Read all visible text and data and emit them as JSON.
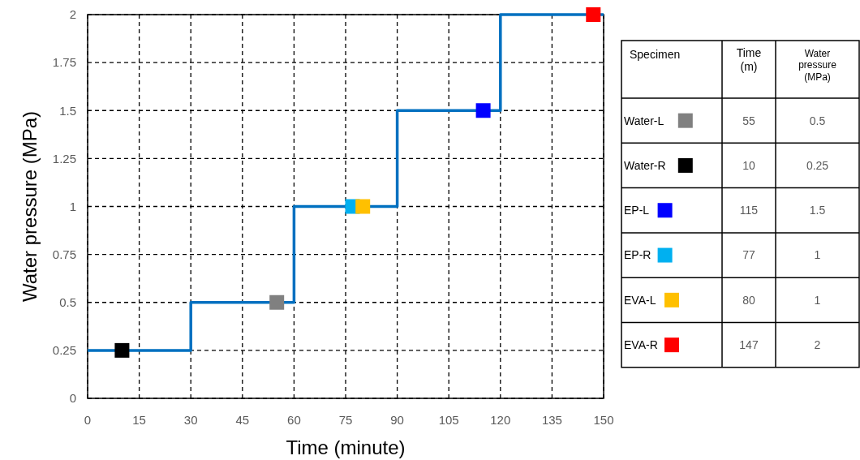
{
  "chart_data": {
    "type": "step",
    "xlabel": "Time (minute)",
    "ylabel": "Water pressure (MPa)",
    "xlim": [
      0,
      150
    ],
    "xticks": [
      0,
      15,
      30,
      45,
      60,
      75,
      90,
      105,
      120,
      135,
      150
    ],
    "ylim": [
      0,
      2
    ],
    "yticks": [
      0,
      0.25,
      0.5,
      0.75,
      1,
      1.25,
      1.5,
      1.75,
      2
    ],
    "grid": true,
    "legend": "right",
    "marker": "square",
    "line_style": "solid",
    "annotations": [
      "Specimen",
      "Time (m)",
      "Water pressure (MPa)",
      "55",
      "10",
      "115",
      "77",
      "80",
      "147",
      "0.5",
      "0.25",
      "1.5",
      "1",
      "1",
      "2"
    ],
    "series": [
      {
        "color": "#0070c0",
        "marker": "none",
        "x": [
          0,
          30,
          60,
          90,
          120,
          150
        ],
        "values": [
          0.25,
          0.5,
          1,
          1.5,
          2,
          2
        ]
      },
      {
        "type": "scatter",
        "name": "Water-L",
        "color": "#808080",
        "x": [
          55
        ],
        "values": [
          0.5
        ]
      },
      {
        "type": "scatter",
        "name": "Water-R",
        "color": "#000000",
        "x": [
          10
        ],
        "values": [
          0.25
        ]
      },
      {
        "type": "scatter",
        "name": "EP-L",
        "color": "#0000ff",
        "x": [
          115
        ],
        "values": [
          1.5
        ]
      },
      {
        "type": "scatter",
        "name": "EP-R",
        "color": "#00b0f0",
        "x": [
          77
        ],
        "values": [
          1
        ]
      },
      {
        "type": "scatter",
        "name": "EVA-L",
        "color": "#ffc000",
        "x": [
          80
        ],
        "values": [
          1
        ]
      },
      {
        "type": "scatter",
        "name": "EVA-R",
        "color": "#ff0000",
        "x": [
          147
        ],
        "values": [
          2
        ]
      }
    ]
  }
}
